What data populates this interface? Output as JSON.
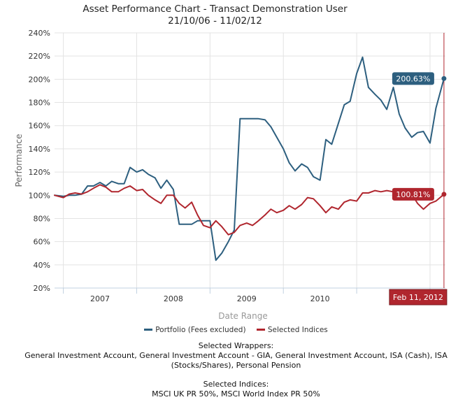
{
  "title_line1": "Asset Performance Chart - Transact Demonstration User",
  "title_line2": "21/10/06 - 11/02/12",
  "legend": [
    {
      "label": "Portfolio (Fees excluded)",
      "color": "#2d5f7f"
    },
    {
      "label": "Selected Indices",
      "color": "#b0262e"
    }
  ],
  "wrappers_label": "Selected Wrappers:",
  "wrappers_text": "General Investment Account, General Investment Account - GIA, General Investment Account, ISA (Cash), ISA (Stocks/Shares), Personal Pension",
  "indices_label": "Selected Indices:",
  "indices_text": "MSCI UK PR 50%, MSCI World Index PR 50%",
  "chart_data": {
    "type": "line",
    "title": "Asset Performance Chart - Transact Demonstration User",
    "subtitle": "21/10/06 - 11/02/12",
    "xlabel": "Date Range",
    "ylabel": "Performance",
    "x_ticks": [
      "2007",
      "2008",
      "2009",
      "2010"
    ],
    "y_ticks": [
      "20%",
      "40%",
      "60%",
      "80%",
      "100%",
      "120%",
      "140%",
      "160%",
      "180%",
      "200%",
      "220%",
      "240%"
    ],
    "ylim": [
      20,
      240
    ],
    "xlim": [
      2006.8,
      2012.13
    ],
    "grid": true,
    "legend_position": "bottom",
    "crosshair_label": "Feb 11, 2012",
    "crosshair_x": 2012.11,
    "series": [
      {
        "name": "Portfolio (Fees excluded)",
        "color": "#2d5f7f",
        "end_label": "200.63%",
        "x": [
          2006.8,
          2006.92,
          2007.0,
          2007.08,
          2007.17,
          2007.25,
          2007.33,
          2007.42,
          2007.5,
          2007.58,
          2007.67,
          2007.75,
          2007.83,
          2007.92,
          2008.0,
          2008.08,
          2008.17,
          2008.25,
          2008.33,
          2008.42,
          2008.5,
          2008.58,
          2008.67,
          2008.75,
          2008.83,
          2008.92,
          2009.0,
          2009.08,
          2009.17,
          2009.25,
          2009.33,
          2009.42,
          2009.5,
          2009.58,
          2009.67,
          2009.75,
          2009.83,
          2009.92,
          2010.0,
          2010.08,
          2010.17,
          2010.25,
          2010.33,
          2010.42,
          2010.5,
          2010.58,
          2010.67,
          2010.75,
          2010.83,
          2010.92,
          2011.0,
          2011.08,
          2011.17,
          2011.25,
          2011.33,
          2011.42,
          2011.5,
          2011.58,
          2011.67,
          2011.75,
          2011.83,
          2011.92,
          2012.0,
          2012.11
        ],
        "values": [
          100,
          99,
          100,
          100,
          101,
          108,
          108,
          111,
          108,
          112,
          110,
          110,
          124,
          120,
          122,
          118,
          115,
          106,
          113,
          105,
          75,
          75,
          75,
          78,
          78,
          78,
          44,
          50,
          60,
          70,
          166,
          166,
          166,
          166,
          165,
          159,
          150,
          140,
          128,
          121,
          127,
          124,
          116,
          113,
          148,
          144,
          162,
          178,
          181,
          205,
          219,
          193,
          187,
          182,
          174,
          193,
          170,
          158,
          150,
          154,
          155,
          145,
          175,
          200.63
        ]
      },
      {
        "name": "Selected Indices",
        "color": "#b0262e",
        "end_label": "100.81%",
        "x": [
          2006.8,
          2006.92,
          2007.0,
          2007.08,
          2007.17,
          2007.25,
          2007.33,
          2007.42,
          2007.5,
          2007.58,
          2007.67,
          2007.75,
          2007.83,
          2007.92,
          2008.0,
          2008.08,
          2008.17,
          2008.25,
          2008.33,
          2008.42,
          2008.5,
          2008.58,
          2008.67,
          2008.75,
          2008.83,
          2008.92,
          2009.0,
          2009.08,
          2009.17,
          2009.25,
          2009.33,
          2009.42,
          2009.5,
          2009.58,
          2009.67,
          2009.75,
          2009.83,
          2009.92,
          2010.0,
          2010.08,
          2010.17,
          2010.25,
          2010.33,
          2010.42,
          2010.5,
          2010.58,
          2010.67,
          2010.75,
          2010.83,
          2010.92,
          2011.0,
          2011.08,
          2011.17,
          2011.25,
          2011.33,
          2011.42,
          2011.5,
          2011.58,
          2011.67,
          2011.75,
          2011.83,
          2011.92,
          2012.0,
          2012.11
        ],
        "values": [
          100,
          98,
          101,
          102,
          101,
          103,
          106,
          109,
          107,
          103,
          103,
          106,
          108,
          104,
          105,
          100,
          96,
          93,
          100,
          100,
          93,
          89,
          94,
          83,
          74,
          72,
          78,
          73,
          66,
          68,
          74,
          76,
          74,
          78,
          83,
          88,
          85,
          87,
          91,
          88,
          92,
          98,
          97,
          91,
          85,
          90,
          88,
          94,
          96,
          95,
          102,
          102,
          104,
          103,
          104,
          103,
          103,
          103,
          101,
          93,
          88,
          93,
          95,
          100.81
        ]
      }
    ]
  }
}
